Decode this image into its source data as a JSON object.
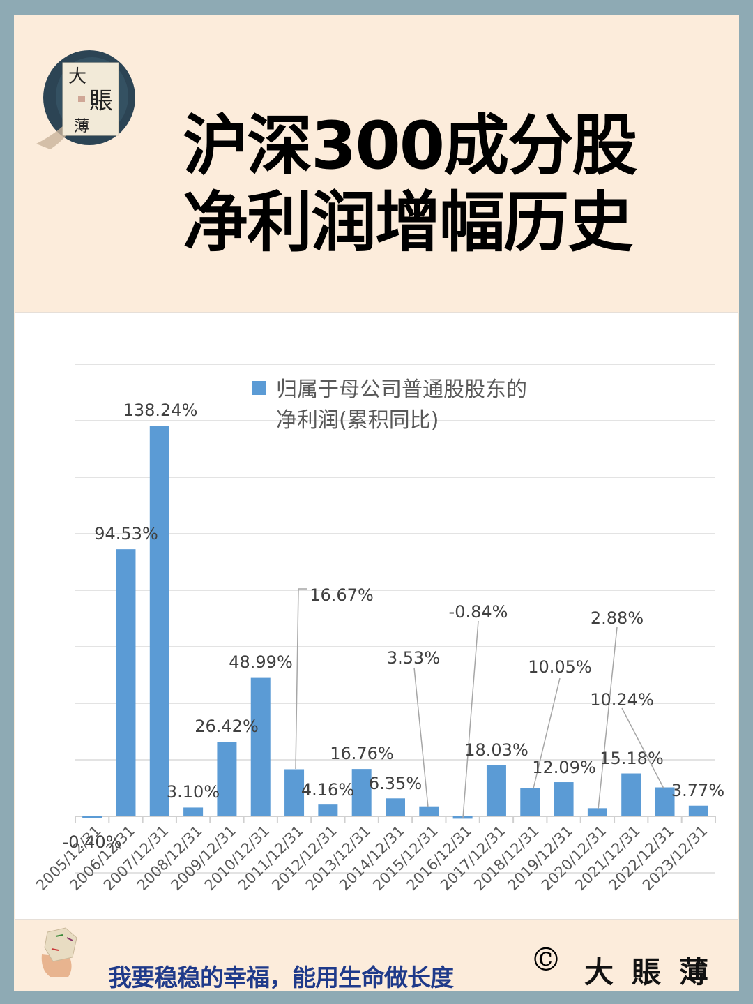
{
  "header": {
    "title_line1": "沪深300成分股",
    "title_line2": "净利润增幅历史",
    "logo": {
      "chars": [
        "大",
        "賬",
        "薄"
      ],
      "icon": "brand-logo-icon"
    }
  },
  "colors": {
    "outer_border": "#8eaab4",
    "panel_bg": "#fcecdb",
    "bar": "#5b9bd5",
    "slogan": "#1f3a8a",
    "gridline": "#e3e3e3",
    "label_text": "#404040"
  },
  "chart_data": {
    "type": "bar",
    "title": "",
    "legend": [
      "归属于母公司普通股股东的净利润(累积同比)"
    ],
    "legend_lines": [
      "归属于母公司普通股股东的",
      "净利润(累积同比)"
    ],
    "legend_position": "top-right",
    "xlabel": "",
    "ylabel": "",
    "ylim": [
      -20,
      160
    ],
    "y_gridline_step": 20,
    "grid": true,
    "y_tick_labels_visible": false,
    "categories": [
      "2005/12/31",
      "2006/12/31",
      "2007/12/31",
      "2008/12/31",
      "2009/12/31",
      "2010/12/31",
      "2011/12/31",
      "2012/12/31",
      "2013/12/31",
      "2014/12/31",
      "2015/12/31",
      "2016/12/31",
      "2017/12/31",
      "2018/12/31",
      "2019/12/31",
      "2020/12/31",
      "2021/12/31",
      "2022/12/31",
      "2023/12/31"
    ],
    "series": [
      {
        "name": "归属于母公司普通股股东的净利润(累积同比)",
        "values": [
          -0.4,
          94.53,
          138.24,
          3.1,
          26.42,
          48.99,
          16.67,
          4.16,
          16.76,
          6.35,
          3.53,
          -0.84,
          18.03,
          10.05,
          12.09,
          2.88,
          15.18,
          10.24,
          3.77
        ],
        "labels": [
          "-0.40%",
          "94.53%",
          "138.24%",
          "3.10%",
          "26.42%",
          "48.99%",
          "16.67%",
          "4.16%",
          "16.76%",
          "6.35%",
          "3.53%",
          "-0.84%",
          "18.03%",
          "10.05%",
          "12.09%",
          "2.88%",
          "15.18%",
          "10.24%",
          "3.77%"
        ]
      }
    ]
  },
  "footer": {
    "slogan": "我要稳稳的幸福，能用生命做长度",
    "copyright_symbol": "©",
    "brand": "大賬薄"
  }
}
